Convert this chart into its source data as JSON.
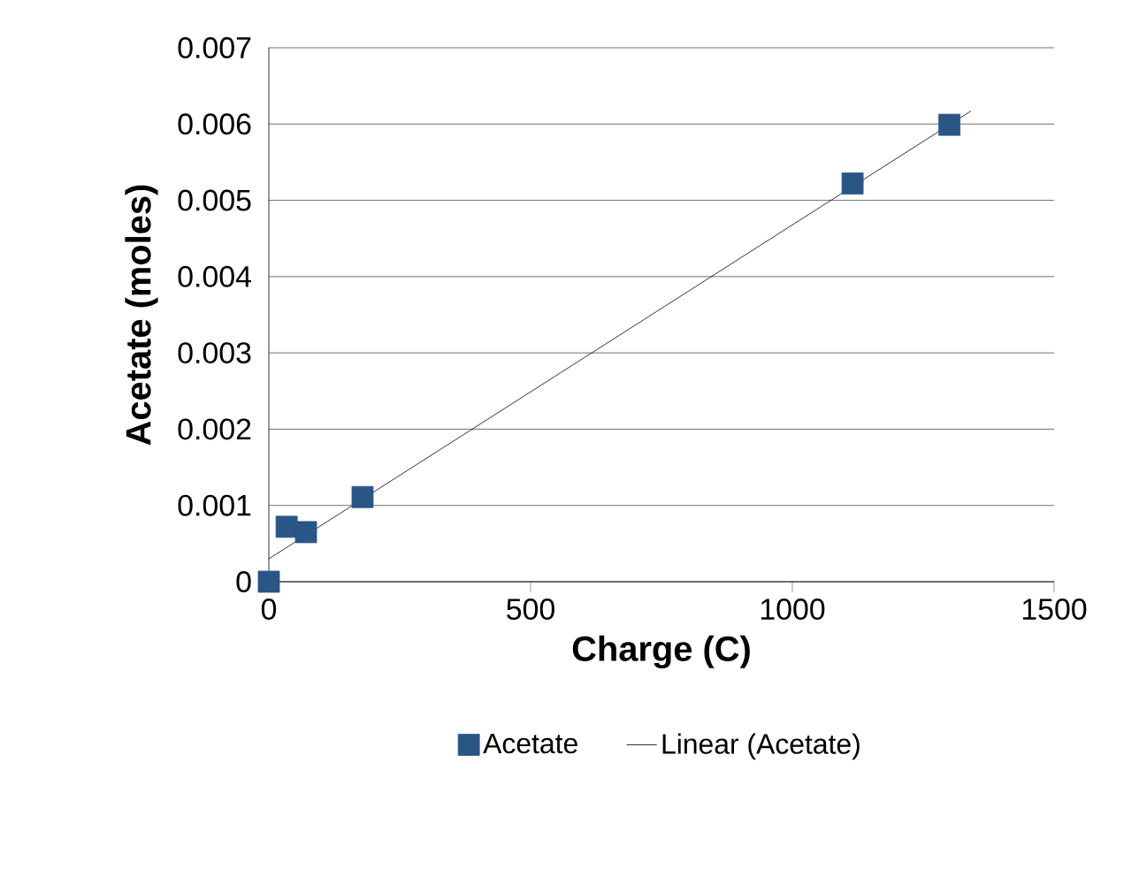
{
  "chart_data": {
    "type": "scatter",
    "xlabel": "Charge (C)",
    "ylabel": "Acetate (moles)",
    "series": [
      {
        "name": "Acetate",
        "color": "#2a5587",
        "marker": "square",
        "x": [
          0,
          34,
          71,
          179,
          1115,
          1300
        ],
        "values": [
          0,
          0.00072,
          0.00065,
          0.00111,
          0.00522,
          0.00599
        ]
      },
      {
        "name": "Linear (Acetate)",
        "type": "line",
        "color": "#000000",
        "marker": "none",
        "line_style": "solid",
        "x": [
          0,
          1341
        ],
        "values": [
          0.0003,
          0.00617
        ]
      }
    ],
    "xlim": [
      0,
      1500
    ],
    "ylim": [
      0,
      0.007
    ],
    "xticks": [
      0,
      500,
      1000,
      1500
    ],
    "yticks": [
      0,
      0.001,
      0.002,
      0.003,
      0.004,
      0.005,
      0.006,
      0.007
    ],
    "grid": "y",
    "legend": "bottom"
  }
}
